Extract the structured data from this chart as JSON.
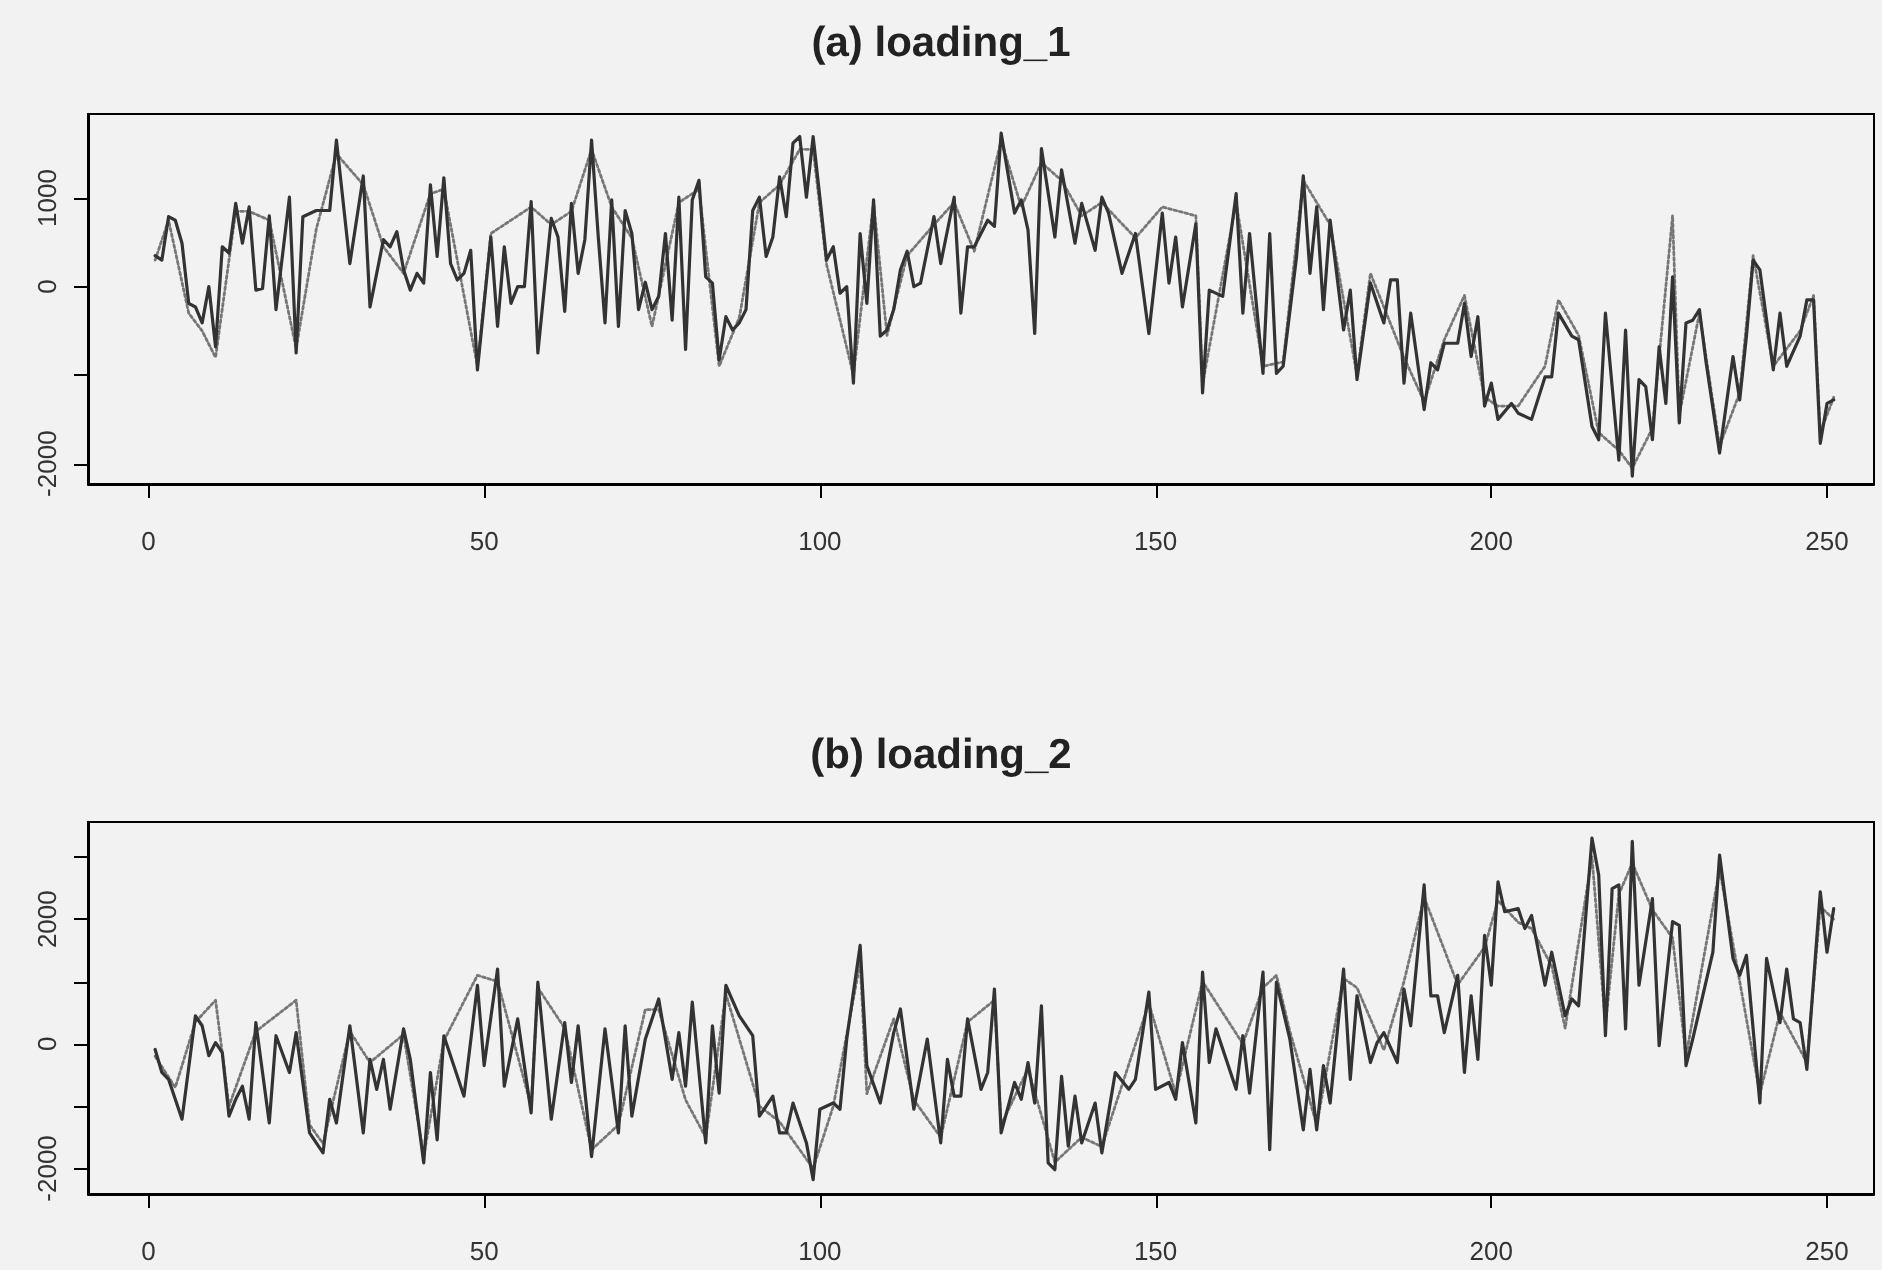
{
  "chart_data": [
    {
      "type": "line",
      "title": "(a) loading_1",
      "marker": "none",
      "xlim": [
        -9,
        257
      ],
      "ylim": [
        -2230,
        1950
      ],
      "xticks": [
        0,
        50,
        100,
        150,
        200,
        250
      ],
      "yticks": [
        -2000,
        {
          "value": -1000,
          "label": null
        },
        0,
        1000
      ],
      "series": [
        {
          "color": "#333333",
          "line_style": "solid",
          "x": [
            1,
            2,
            3,
            4,
            5,
            6,
            7,
            8,
            9,
            10,
            11,
            12,
            13,
            14,
            15,
            16,
            17,
            18,
            19,
            21,
            22,
            23,
            25,
            27,
            28,
            30,
            32,
            33,
            35,
            36,
            37,
            38,
            39,
            40,
            41,
            42,
            43,
            44,
            45,
            46,
            47,
            48,
            49,
            51,
            52,
            53,
            54,
            55,
            56,
            57,
            58,
            60,
            61,
            62,
            63,
            64,
            65,
            66,
            67,
            68,
            69,
            70,
            71,
            72,
            73,
            74,
            75,
            76,
            77,
            78,
            79,
            80,
            81,
            82,
            83,
            84,
            85,
            86,
            87,
            88,
            89,
            90,
            91,
            92,
            93,
            94,
            95,
            96,
            97,
            98,
            99,
            100,
            101,
            102,
            103,
            104,
            105,
            106,
            107,
            108,
            109,
            110,
            111,
            112,
            113,
            114,
            115,
            117,
            118,
            120,
            121,
            122,
            123,
            125,
            126,
            127,
            129,
            130,
            131,
            132,
            133,
            135,
            136,
            138,
            139,
            141,
            142,
            143,
            145,
            147,
            149,
            151,
            152,
            153,
            154,
            156,
            157,
            158,
            160,
            162,
            163,
            164,
            166,
            167,
            168,
            169,
            171,
            172,
            173,
            174,
            175,
            176,
            178,
            179,
            180,
            182,
            184,
            185,
            186,
            187,
            188,
            190,
            191,
            192,
            193,
            195,
            196,
            197,
            198,
            199,
            200,
            201,
            203,
            204,
            206,
            208,
            209,
            210,
            212,
            213,
            215,
            216,
            217,
            219,
            220,
            221,
            222,
            223,
            224,
            225,
            226,
            227,
            228,
            229,
            230,
            231,
            232,
            234,
            236,
            237,
            238,
            239,
            240,
            242,
            243,
            244,
            246,
            247,
            248,
            249,
            250,
            251
          ],
          "values": [
            350,
            300,
            790,
            750,
            490,
            -190,
            -230,
            -410,
            0,
            -680,
            450,
            380,
            940,
            490,
            900,
            -40,
            -20,
            800,
            -260,
            1010,
            -750,
            790,
            860,
            860,
            1655,
            260,
            1250,
            -230,
            530,
            450,
            620,
            190,
            -40,
            150,
            40,
            1150,
            340,
            1230,
            260,
            75,
            150,
            410,
            -940,
            560,
            -450,
            450,
            -190,
            0,
            0,
            960,
            -750,
            770,
            560,
            -280,
            940,
            150,
            530,
            1655,
            560,
            -410,
            980,
            -450,
            860,
            600,
            -260,
            50,
            -260,
            -110,
            600,
            -380,
            1010,
            -710,
            980,
            1200,
            110,
            40,
            -830,
            -340,
            -490,
            -410,
            -260,
            860,
            1010,
            340,
            560,
            1240,
            790,
            1620,
            1695,
            1010,
            1695,
            1010,
            300,
            450,
            -75,
            0,
            -1090,
            600,
            -190,
            980,
            -560,
            -490,
            -260,
            190,
            400,
            0,
            40,
            790,
            260,
            1010,
            -300,
            450,
            450,
            750,
            680,
            1735,
            830,
            980,
            640,
            -530,
            1560,
            560,
            1320,
            490,
            940,
            410,
            1010,
            830,
            150,
            600,
            -530,
            830,
            40,
            560,
            -230,
            710,
            -1200,
            -40,
            -110,
            1050,
            -300,
            600,
            -980,
            600,
            -980,
            -900,
            340,
            1250,
            150,
            900,
            -260,
            750,
            -490,
            -40,
            -1050,
            40,
            -410,
            75,
            75,
            -1090,
            -300,
            -1390,
            -860,
            -940,
            -640,
            -640,
            -190,
            -790,
            -340,
            -1350,
            -1090,
            -1500,
            -1320,
            -1430,
            -1500,
            -1020,
            -1020,
            -300,
            -560,
            -600,
            -1580,
            -1730,
            -300,
            -1960,
            -490,
            -2140,
            -1050,
            -1130,
            -1730,
            -680,
            -1320,
            110,
            -1540,
            -410,
            -380,
            -260,
            -860,
            -1880,
            -790,
            -1280,
            -560,
            300,
            190,
            -940,
            -300,
            -900,
            -560,
            -150,
            -150,
            -1770,
            -1320,
            -1280
          ]
        },
        {
          "color": "#777777",
          "line_style": "dotted",
          "x": [
            1,
            3,
            6,
            8,
            10,
            13,
            15,
            18,
            22,
            25,
            28,
            32,
            35,
            38,
            42,
            44,
            49,
            51,
            57,
            60,
            63,
            66,
            69,
            72,
            75,
            79,
            82,
            85,
            88,
            91,
            94,
            97,
            99,
            101,
            105,
            108,
            110,
            113,
            117,
            120,
            123,
            127,
            130,
            133,
            136,
            139,
            142,
            147,
            151,
            156,
            157,
            162,
            166,
            169,
            172,
            176,
            180,
            182,
            187,
            190,
            193,
            196,
            199,
            201,
            204,
            208,
            210,
            213,
            216,
            219,
            221,
            224,
            227,
            228,
            231,
            234,
            237,
            239,
            242,
            246,
            248,
            249,
            251
          ],
          "values": [
            300,
            750,
            -300,
            -500,
            -800,
            850,
            850,
            750,
            -700,
            650,
            1500,
            1150,
            450,
            150,
            1050,
            1100,
            -900,
            600,
            900,
            700,
            850,
            1550,
            900,
            550,
            -450,
            950,
            1100,
            -900,
            -350,
            950,
            1150,
            1550,
            1550,
            250,
            -1000,
            950,
            -550,
            350,
            700,
            950,
            400,
            1650,
            900,
            1400,
            1200,
            800,
            950,
            550,
            900,
            800,
            -1100,
            950,
            -900,
            -850,
            1200,
            700,
            -1000,
            150,
            -800,
            -1300,
            -600,
            -100,
            -1250,
            -1350,
            -1350,
            -900,
            -150,
            -550,
            -1650,
            -1850,
            -2050,
            -1600,
            800,
            -1450,
            -300,
            -1800,
            -1200,
            350,
            -900,
            -500,
            -100,
            -1650,
            -1250
          ]
        }
      ]
    },
    {
      "type": "line",
      "title": "(b) loading_2",
      "marker": "none",
      "xlim": [
        -9,
        257
      ],
      "ylim": [
        -2410,
        3560
      ],
      "xticks": [
        0,
        50,
        100,
        150,
        200,
        250
      ],
      "yticks": [
        -2000,
        {
          "value": -1000,
          "label": null
        },
        0,
        {
          "value": 1000,
          "label": null
        },
        2000,
        {
          "value": 3000,
          "label": null
        }
      ],
      "series": [
        {
          "color": "#333333",
          "line_style": "solid",
          "x": [
            1,
            2,
            3,
            5,
            7,
            8,
            9,
            10,
            11,
            12,
            13,
            14,
            15,
            16,
            18,
            19,
            21,
            22,
            24,
            26,
            27,
            28,
            30,
            32,
            33,
            34,
            35,
            36,
            38,
            39,
            41,
            42,
            43,
            44,
            47,
            49,
            50,
            52,
            53,
            55,
            57,
            58,
            60,
            62,
            63,
            64,
            66,
            68,
            70,
            71,
            72,
            74,
            76,
            78,
            79,
            80,
            81,
            83,
            84,
            85,
            86,
            88,
            90,
            91,
            93,
            94,
            95,
            96,
            98,
            99,
            100,
            102,
            103,
            104,
            106,
            107,
            109,
            111,
            112,
            114,
            116,
            118,
            119,
            120,
            121,
            122,
            124,
            125,
            126,
            127,
            129,
            130,
            131,
            132,
            133,
            134,
            135,
            136,
            137,
            138,
            139,
            141,
            142,
            144,
            146,
            147,
            149,
            150,
            152,
            153,
            154,
            156,
            157,
            158,
            159,
            162,
            163,
            164,
            166,
            167,
            168,
            170,
            172,
            173,
            174,
            175,
            176,
            178,
            179,
            180,
            182,
            183,
            184,
            186,
            187,
            188,
            190,
            191,
            192,
            193,
            195,
            196,
            197,
            198,
            199,
            200,
            201,
            202,
            204,
            205,
            206,
            208,
            209,
            211,
            212,
            213,
            215,
            216,
            217,
            218,
            219,
            220,
            221,
            222,
            224,
            225,
            227,
            228,
            229,
            230,
            233,
            234,
            236,
            237,
            238,
            240,
            241,
            243,
            244,
            245,
            246,
            247,
            249,
            250,
            251
          ],
          "values": [
            -90,
            -460,
            -570,
            -1210,
            450,
            290,
            -190,
            20,
            -140,
            -1160,
            -890,
            -680,
            -1210,
            340,
            -1270,
            130,
            -460,
            180,
            -1430,
            -1750,
            -890,
            -1270,
            290,
            -1430,
            -250,
            -730,
            -250,
            -1050,
            240,
            -250,
            -1910,
            -460,
            -1540,
            130,
            -840,
            940,
            -350,
            1200,
            -680,
            400,
            -1110,
            990,
            -1210,
            340,
            -620,
            290,
            -1810,
            240,
            -1430,
            290,
            -1160,
            75,
            720,
            -570,
            180,
            -680,
            670,
            -1590,
            290,
            -790,
            940,
            450,
            130,
            -1160,
            -840,
            -1430,
            -1430,
            -950,
            -1590,
            -2180,
            -1050,
            -950,
            -1050,
            75,
            1580,
            -350,
            -950,
            180,
            560,
            -1050,
            75,
            -1590,
            -250,
            -840,
            -840,
            400,
            -730,
            -460,
            880,
            -1430,
            -620,
            -890,
            -300,
            -950,
            610,
            -1910,
            -2020,
            -520,
            -1640,
            -840,
            -1590,
            -950,
            -1750,
            -460,
            -730,
            -570,
            830,
            -730,
            -620,
            -890,
            20,
            -1270,
            1150,
            -300,
            240,
            -730,
            130,
            -790,
            1150,
            -1700,
            990,
            75,
            -1380,
            -410,
            -1380,
            -350,
            -950,
            1200,
            -570,
            770,
            -300,
            20,
            180,
            -300,
            880,
            290,
            2550,
            770,
            770,
            180,
            1100,
            -460,
            770,
            -250,
            1740,
            940,
            2600,
            2120,
            2170,
            1850,
            2060,
            940,
            1470,
            450,
            720,
            610,
            3300,
            2710,
            130,
            2490,
            2550,
            240,
            3250,
            940,
            2330,
            -30,
            1960,
            1900,
            -350,
            75,
            1470,
            3030,
            1370,
            1100,
            1420,
            -950,
            1370,
            340,
            1200,
            400,
            340,
            -410,
            2440,
            1470,
            2170
          ]
        },
        {
          "color": "#777777",
          "line_style": "dotted",
          "x": [
            1,
            4,
            7,
            10,
            12,
            16,
            22,
            24,
            26,
            30,
            33,
            38,
            41,
            44,
            49,
            52,
            57,
            58,
            62,
            66,
            70,
            74,
            76,
            80,
            83,
            86,
            91,
            94,
            99,
            102,
            106,
            107,
            111,
            114,
            118,
            122,
            126,
            127,
            131,
            135,
            139,
            142,
            149,
            153,
            157,
            163,
            166,
            168,
            170,
            174,
            178,
            180,
            184,
            187,
            190,
            195,
            199,
            201,
            204,
            206,
            209,
            211,
            215,
            217,
            219,
            221,
            224,
            227,
            229,
            234,
            237,
            240,
            243,
            247,
            249,
            251
          ],
          "values": [
            -200,
            -700,
            350,
            700,
            -1000,
            200,
            700,
            -1300,
            -1600,
            200,
            -300,
            150,
            -1800,
            50,
            1100,
            1000,
            -1000,
            900,
            250,
            -1700,
            -1300,
            550,
            550,
            -900,
            -1500,
            800,
            -1000,
            -1250,
            -2000,
            -1000,
            1300,
            -800,
            400,
            -900,
            -1500,
            350,
            700,
            -1300,
            -400,
            -1900,
            -1500,
            -1650,
            650,
            -800,
            1000,
            0,
            900,
            1100,
            200,
            -1300,
            1050,
            900,
            -100,
            1000,
            2350,
            950,
            1550,
            2300,
            1950,
            1850,
            1250,
            250,
            3000,
            300,
            2400,
            2900,
            2150,
            1700,
            -200,
            2800,
            1000,
            -800,
            500,
            -300,
            2200,
            2000
          ]
        }
      ]
    }
  ]
}
